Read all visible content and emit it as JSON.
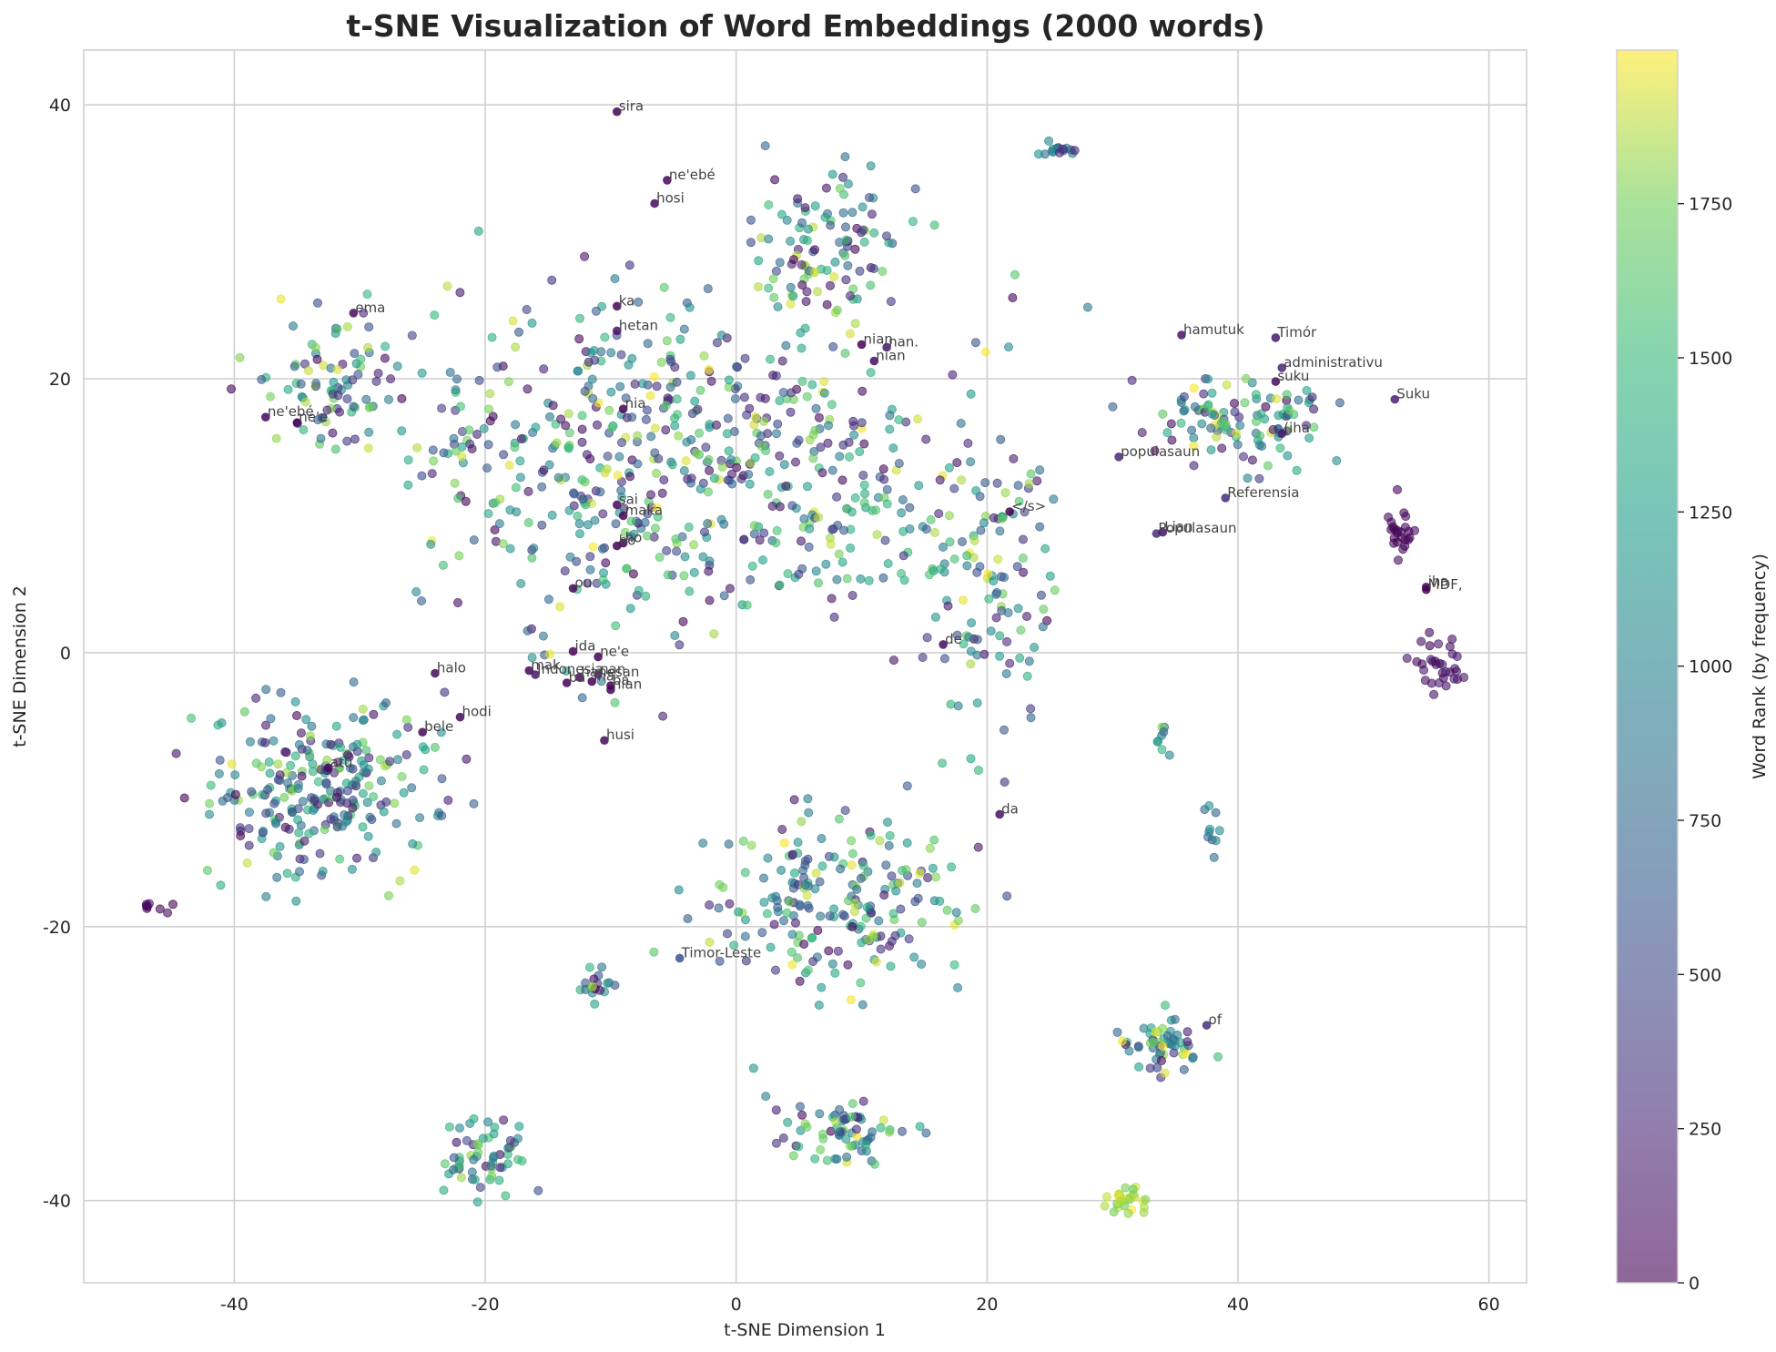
{
  "chart_data": {
    "type": "scatter",
    "title": "t-SNE Visualization of Word Embeddings (2000 words)",
    "xlabel": "t-SNE Dimension 1",
    "ylabel": "t-SNE Dimension 2",
    "xlim": [
      -52,
      63
    ],
    "ylim": [
      -46,
      44
    ],
    "xticks": [
      -40,
      -20,
      0,
      20,
      40,
      60
    ],
    "yticks": [
      -40,
      -20,
      0,
      20,
      40
    ],
    "xtick_labels": [
      "-40",
      "-20",
      "0",
      "20",
      "40",
      "60"
    ],
    "ytick_labels": [
      "-40",
      "-20",
      "0",
      "20",
      "40"
    ],
    "grid": true,
    "colormap": "viridis",
    "point_alpha": 0.6,
    "colorbar": {
      "label": "Word Rank (by frequency)",
      "range": [
        0,
        1999
      ],
      "ticks": [
        0,
        250,
        500,
        750,
        1000,
        1250,
        1500,
        1750
      ],
      "tick_labels": [
        "0",
        "250",
        "500",
        "750",
        "1000",
        "1250",
        "1500",
        "1750"
      ]
    },
    "clusters": [
      {
        "cx": -3,
        "cy": 14,
        "sx": 21,
        "sy": 11,
        "n": 620,
        "rank": [
          0,
          1999
        ]
      },
      {
        "cx": -33,
        "cy": -10,
        "sx": 8,
        "sy": 6,
        "n": 260,
        "rank": [
          0,
          1999
        ]
      },
      {
        "cx": -32,
        "cy": 20,
        "sx": 5,
        "sy": 5,
        "n": 90,
        "rank": [
          0,
          1999
        ]
      },
      {
        "cx": 7,
        "cy": 30,
        "sx": 5,
        "sy": 5,
        "n": 100,
        "rank": [
          0,
          1999
        ]
      },
      {
        "cx": 8,
        "cy": -18,
        "sx": 9,
        "sy": 6,
        "n": 210,
        "rank": [
          0,
          1999
        ]
      },
      {
        "cx": 20,
        "cy": 5,
        "sx": 5,
        "sy": 9,
        "n": 110,
        "rank": [
          0,
          1999
        ]
      },
      {
        "cx": 40,
        "cy": 17,
        "sx": 7,
        "sy": 3,
        "n": 110,
        "rank": [
          0,
          1999
        ]
      },
      {
        "cx": -20,
        "cy": -37,
        "sx": 3.5,
        "sy": 2.5,
        "n": 60,
        "rank": [
          0,
          1999
        ]
      },
      {
        "cx": 8,
        "cy": -35,
        "sx": 4.5,
        "sy": 2,
        "n": 70,
        "rank": [
          0,
          1999
        ]
      },
      {
        "cx": 34,
        "cy": -29,
        "sx": 2.8,
        "sy": 2,
        "n": 55,
        "rank": [
          0,
          1999
        ]
      },
      {
        "cx": 31,
        "cy": -40,
        "sx": 1.2,
        "sy": 1.0,
        "n": 28,
        "rank": [
          1700,
          1999
        ]
      },
      {
        "cx": 26,
        "cy": 36.5,
        "sx": 1.4,
        "sy": 0.8,
        "n": 16,
        "rank": [
          200,
          1200
        ]
      },
      {
        "cx": -11,
        "cy": -24.5,
        "sx": 1.4,
        "sy": 1.2,
        "n": 20,
        "rank": [
          0,
          1999
        ]
      },
      {
        "cx": 53,
        "cy": 9,
        "sx": 1.0,
        "sy": 2.2,
        "n": 24,
        "rank": [
          0,
          80
        ]
      },
      {
        "cx": 56,
        "cy": -1,
        "sx": 1.5,
        "sy": 1.8,
        "n": 32,
        "rank": [
          0,
          200
        ]
      },
      {
        "cx": 38,
        "cy": -12,
        "sx": 0.8,
        "sy": 2.0,
        "n": 10,
        "rank": [
          600,
          1300
        ]
      },
      {
        "cx": 34,
        "cy": -6,
        "sx": 0.4,
        "sy": 1.2,
        "n": 8,
        "rank": [
          700,
          1800
        ]
      },
      {
        "cx": -46,
        "cy": -18.5,
        "sx": 1.0,
        "sy": 0.5,
        "n": 8,
        "rank": [
          0,
          100
        ]
      }
    ],
    "labeled_points": [
      {
        "word": "sira",
        "x": -9.5,
        "y": 39.5,
        "rank": 10
      },
      {
        "word": "ne'ebé",
        "x": -5.5,
        "y": 34.5,
        "rank": 30
      },
      {
        "word": "hosi",
        "x": -6.5,
        "y": 32.8,
        "rank": 45
      },
      {
        "word": "ema",
        "x": -30.5,
        "y": 24.8,
        "rank": 60
      },
      {
        "word": "ka",
        "x": -9.5,
        "y": 25.3,
        "rank": 25
      },
      {
        "word": "hetan",
        "x": -9.5,
        "y": 23.5,
        "rank": 90
      },
      {
        "word": "nian",
        "x": 10,
        "y": 22.5,
        "rank": 8
      },
      {
        "word": "nan.",
        "x": 12,
        "y": 22.3,
        "rank": 150
      },
      {
        "word": "nian",
        "x": 11,
        "y": 21.3,
        "rank": 70
      },
      {
        "word": "nia",
        "x": -9,
        "y": 17.8,
        "rank": 15
      },
      {
        "word": "ne'ebé",
        "x": -37.5,
        "y": 17.2,
        "rank": 40
      },
      {
        "word": "ne'e",
        "x": -35,
        "y": 16.8,
        "rank": 5
      },
      {
        "word": "hamutuk",
        "x": 35.5,
        "y": 23.2,
        "rank": 120
      },
      {
        "word": "Timór",
        "x": 43,
        "y": 23,
        "rank": 160
      },
      {
        "word": "administrativu",
        "x": 43.5,
        "y": 20.8,
        "rank": 220
      },
      {
        "word": "suku",
        "x": 43,
        "y": 19.8,
        "rank": 80
      },
      {
        "word": "Suku",
        "x": 52.5,
        "y": 18.5,
        "rank": 200
      },
      {
        "word": "(iha",
        "x": 43.5,
        "y": 16,
        "rank": 140
      },
      {
        "word": "populasaun",
        "x": 30.5,
        "y": 14.3,
        "rank": 250
      },
      {
        "word": "Referensia",
        "x": 39,
        "y": 11.3,
        "rank": 280
      },
      {
        "word": "</s>",
        "x": 21.8,
        "y": 10.3,
        "rank": 0
      },
      {
        "word": "Populasaun",
        "x": 33.5,
        "y": 8.7,
        "rank": 300
      },
      {
        "word": "Lian",
        "x": 34,
        "y": 8.8,
        "rank": 110
      },
      {
        "word": "sai",
        "x": -9.5,
        "y": 10.8,
        "rank": 35
      },
      {
        "word": "maka",
        "x": -9,
        "y": 10,
        "rank": 20
      },
      {
        "word": "ho",
        "x": -9.5,
        "y": 7.8,
        "rank": 3
      },
      {
        "word": "ho",
        "x": -9,
        "y": 8,
        "rank": 12
      },
      {
        "word": "iha",
        "x": 55,
        "y": 4.8,
        "rank": 1
      },
      {
        "word": "MDF,",
        "x": 55,
        "y": 4.6,
        "rank": 4
      },
      {
        "word": "ou",
        "x": -13,
        "y": 4.7,
        "rank": 50
      },
      {
        "word": "de",
        "x": 16.5,
        "y": 0.6,
        "rank": 55
      },
      {
        "word": "ida",
        "x": -13,
        "y": 0.1,
        "rank": 22
      },
      {
        "word": "ne'e",
        "x": -11,
        "y": -0.3,
        "rank": 2
      },
      {
        "word": "halo",
        "x": -24,
        "y": -1.5,
        "rank": 65
      },
      {
        "word": "mak",
        "x": -16.5,
        "y": -1.3,
        "rank": 28
      },
      {
        "word": "Indonesia",
        "x": -16,
        "y": -1.6,
        "rank": 130
      },
      {
        "word": "nan",
        "x": -11,
        "y": -1.6,
        "rank": 180
      },
      {
        "word": "ba",
        "x": -13.5,
        "y": -2.2,
        "rank": 6
      },
      {
        "word": "iha",
        "x": -11.5,
        "y": -2.1,
        "rank": 7
      },
      {
        "word": "ba",
        "x": -10,
        "y": -2.4,
        "rank": 9
      },
      {
        "word": "hanesan",
        "x": -12.5,
        "y": -1.8,
        "rank": 75
      },
      {
        "word": "nian",
        "x": -10,
        "y": -2.7,
        "rank": 11
      },
      {
        "word": "hodi",
        "x": -22,
        "y": -4.7,
        "rank": 48
      },
      {
        "word": "bele",
        "x": -25,
        "y": -5.8,
        "rank": 38
      },
      {
        "word": "husi",
        "x": -10.5,
        "y": -6.4,
        "rank": 42
      },
      {
        "word": "atu",
        "x": -32.5,
        "y": -8.4,
        "rank": 32
      },
      {
        "word": "da",
        "x": 21,
        "y": -11.8,
        "rank": 95
      },
      {
        "word": "Timor-Leste",
        "x": -4.5,
        "y": -22.3,
        "rank": 600
      },
      {
        "word": "of",
        "x": 37.5,
        "y": -27.2,
        "rank": 310
      }
    ]
  }
}
